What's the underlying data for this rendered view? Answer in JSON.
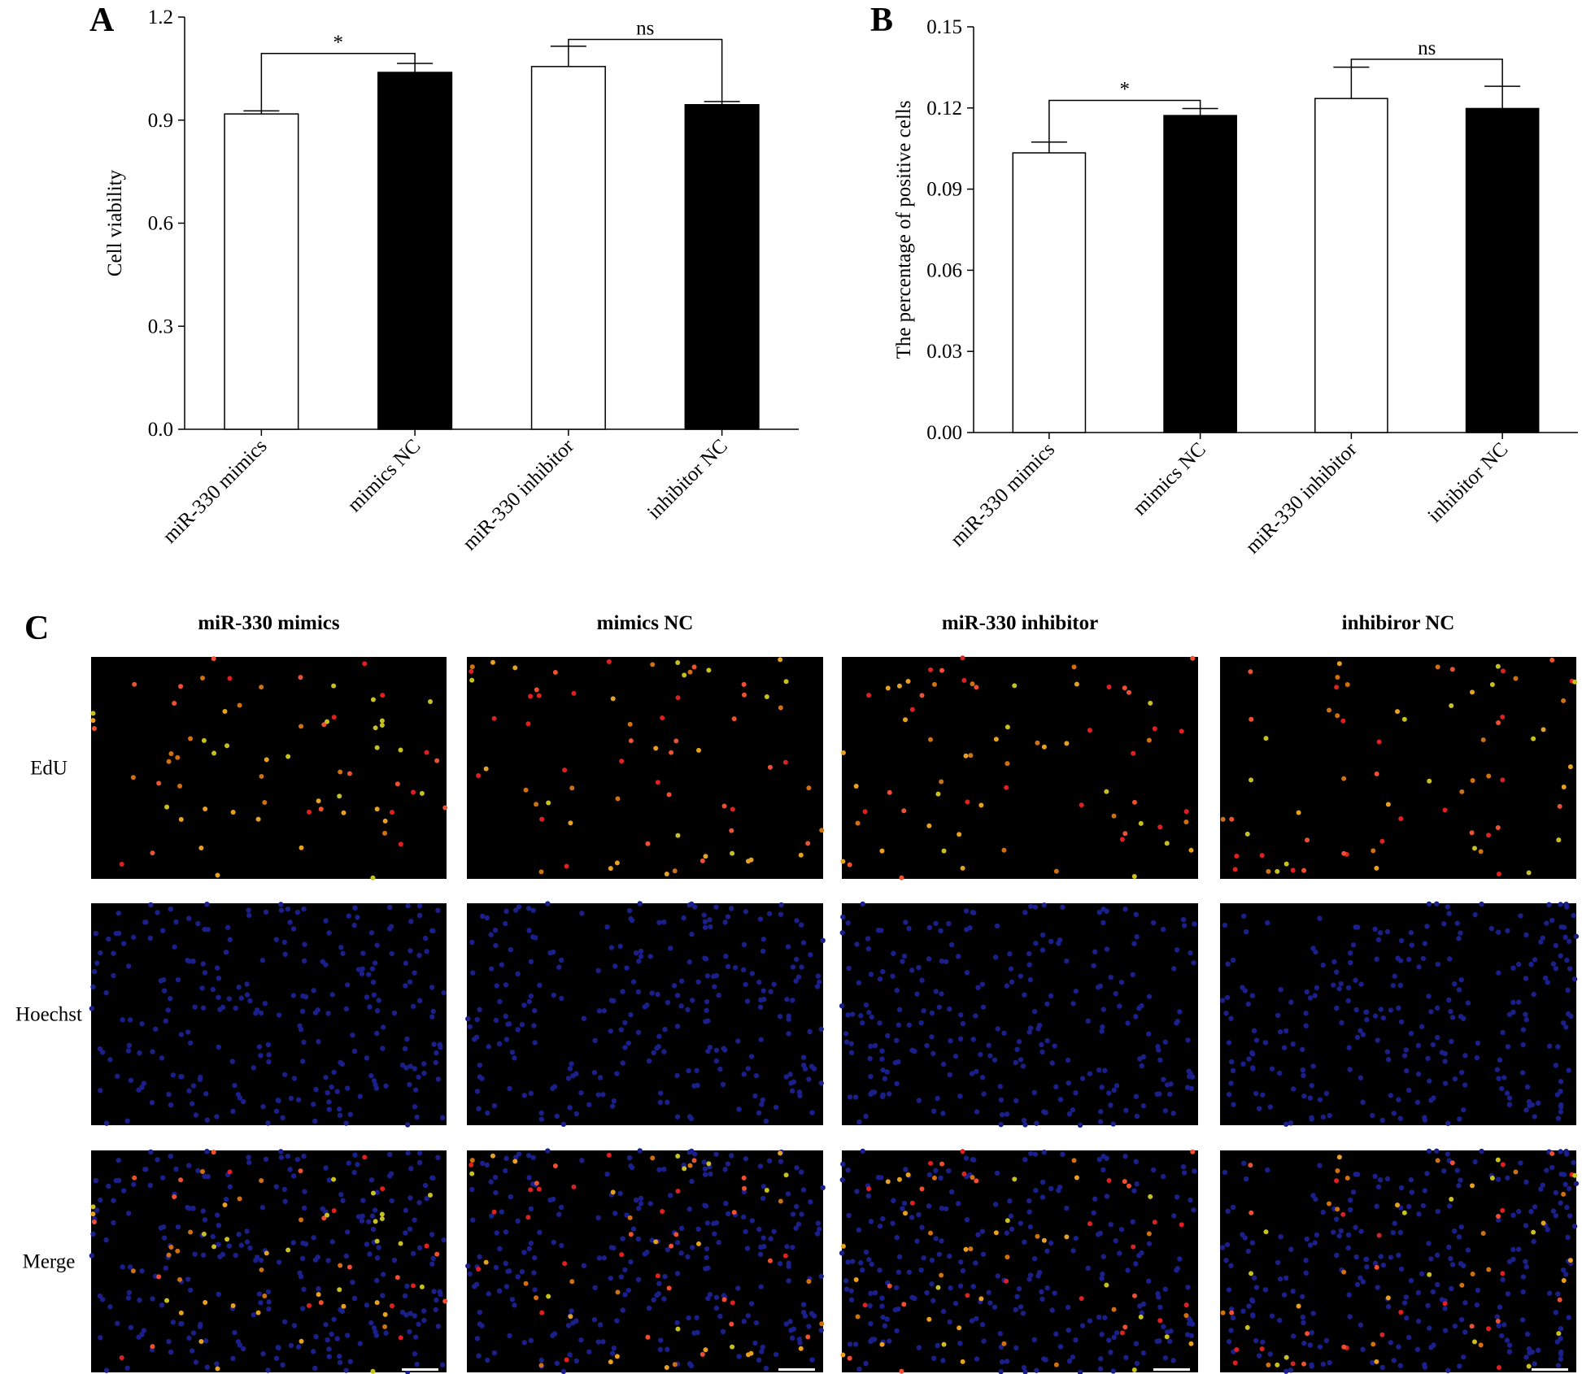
{
  "chart_data": [
    {
      "type": "bar",
      "label": "A",
      "ylabel": "Cell viability",
      "categories": [
        "miR-330 mimics",
        "mimics NC",
        "miR-330 inhibitor",
        "inhibitor NC"
      ],
      "values": [
        0.918,
        1.039,
        1.056,
        0.945
      ],
      "errors": [
        0.009,
        0.026,
        0.059,
        0.009
      ],
      "colors": [
        "#ffffff",
        "#000000",
        "#ffffff",
        "#000000"
      ],
      "ylim": [
        0,
        1.2
      ],
      "yticks": [
        {
          "value": 0,
          "label": "0.0"
        },
        0.3,
        0.6,
        0.9,
        1.2
      ],
      "annotations": [
        {
          "text": "*",
          "y": 1.094
        },
        {
          "text": "ns",
          "y": 1.135
        }
      ]
    },
    {
      "type": "bar",
      "label": "B",
      "ylabel": "The percentage of positive cells",
      "categories": [
        "miR-330 mimics",
        "mimics NC",
        "miR-330 inhibitor",
        "inhibitor NC"
      ],
      "values": [
        0.1034,
        0.1172,
        0.1235,
        0.1198
      ],
      "errors": [
        0.004,
        0.0026,
        0.0116,
        0.0082
      ],
      "colors": [
        "#ffffff",
        "#000000",
        "#ffffff",
        "#000000"
      ],
      "ylim": [
        0,
        0.15
      ],
      "yticks": [
        {
          "value": 0,
          "label": "0.00"
        },
        {
          "value": 0.03,
          "label": "0.03"
        },
        {
          "value": 0.06,
          "label": "0.06"
        },
        {
          "value": 0.09,
          "label": "0.09"
        },
        {
          "value": 0.12,
          "label": "0.12"
        },
        {
          "value": 0.15,
          "label": "0.15"
        }
      ],
      "annotations": [
        {
          "text": "*",
          "y": 0.1228
        },
        {
          "text": "ns",
          "y": 0.138
        }
      ]
    }
  ],
  "panel_c": {
    "label": "C",
    "columns": [
      "miR-330 mimics",
      "mimics NC",
      "miR-330 inhibitor",
      "inhibiror NC"
    ],
    "rows": [
      "EdU",
      "Hoechst",
      "Merge"
    ]
  }
}
